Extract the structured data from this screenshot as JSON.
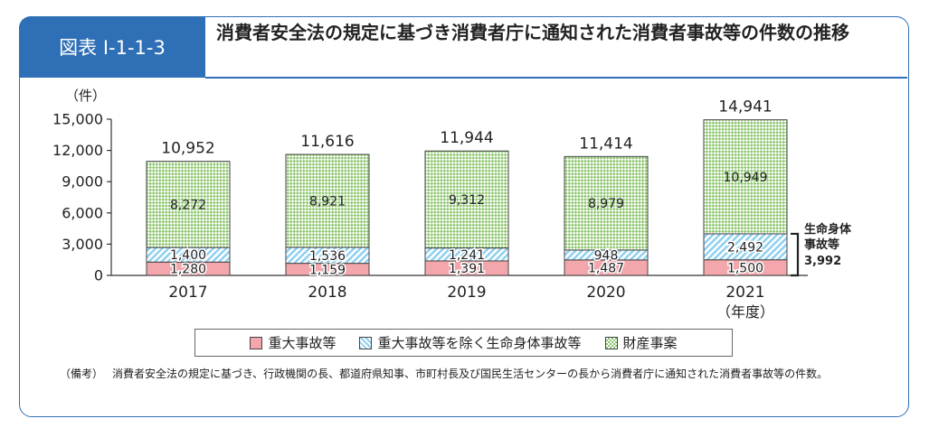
{
  "figure": {
    "label": "図表 I-1-1-3",
    "title": "消費者安全法の規定に基づき消費者庁に通知された消費者事故等の件数の推移"
  },
  "chart_data": {
    "type": "bar",
    "stacked": true,
    "ylabel": "（件）",
    "xlabel": "（年度）",
    "ylim": [
      0,
      15000
    ],
    "yticks": [
      "0",
      "3,000",
      "6,000",
      "9,000",
      "12,000",
      "15,000"
    ],
    "categories": [
      "2017",
      "2018",
      "2019",
      "2020",
      "2021"
    ],
    "series": [
      {
        "name": "重大事故等",
        "values": [
          1280,
          1159,
          1391,
          1487,
          1500
        ],
        "labels": [
          "1,280",
          "1,159",
          "1,391",
          "1,487",
          "1,500"
        ]
      },
      {
        "name": "重大事故等を除く生命身体事故等",
        "values": [
          1400,
          1536,
          1241,
          948,
          2492
        ],
        "labels": [
          "1,400",
          "1,536",
          "1,241",
          "948",
          "2,492"
        ]
      },
      {
        "name": "財産事案",
        "values": [
          8272,
          8921,
          9312,
          8979,
          10949
        ],
        "labels": [
          "8,272",
          "8,921",
          "9,312",
          "8,979",
          "10,949"
        ]
      }
    ],
    "totals": [
      "10,952",
      "11,616",
      "11,944",
      "11,414",
      "14,941"
    ],
    "bracket": {
      "label_lines": [
        "生命身体",
        "事故等"
      ],
      "value": "3,992"
    }
  },
  "note": {
    "label": "（備考）",
    "text": "消費者安全法の規定に基づき、行政機関の長、都道府県知事、市町村長及び国民生活センターの長から消費者庁に通知された消費者事故等の件数。"
  },
  "colors": {
    "frame": "#2f6fb5",
    "serious": "#f3a7ac",
    "life_stripe": "#8fd0f0",
    "property_check": "#8bc56b"
  }
}
